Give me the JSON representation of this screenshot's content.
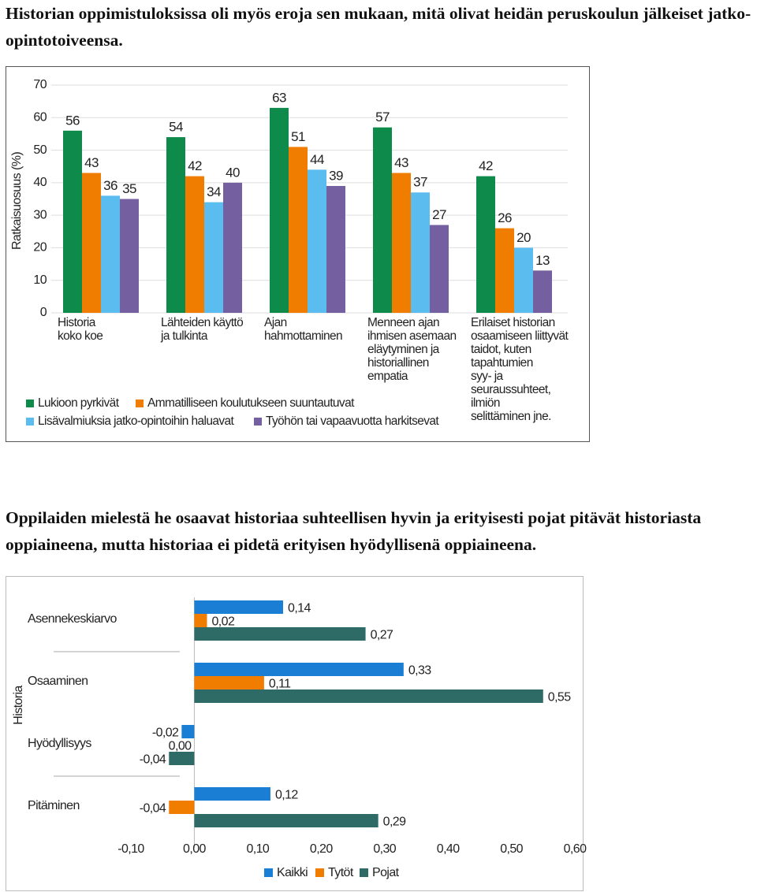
{
  "paragraphs": [
    "Historian oppimistuloksissa oli myös eroja sen mukaan, mitä olivat heidän peruskoulun jälkeiset jatko-opintotoiveensa.",
    "Oppilaiden mielestä he osaavat historiaa suhteellisen hyvin ja erityisesti pojat pitävät historiasta oppiaineena, mutta historiaa ei pidetä erityisen hyödyllisenä oppiaineena."
  ],
  "chart_data": [
    {
      "type": "bar",
      "y_label": "Ratkaisuosuus (%)",
      "categories": [
        "Historia\nkoko koe",
        "Lähteiden käyttö\nja tulkinta",
        "Ajan\nhahmottaminen",
        "Menneen ajan\nihmisen asemaan\neläytyminen ja\nhistoriallinen\nempatia",
        "Erilaiset historian\nosaamiseen liittyvät\ntaidot, kuten\ntapahtumien\nsyy- ja\nseuraussuhteet,\n ilmiön\nselittäminen jne."
      ],
      "series": [
        {
          "name": "Lukioon pyrkivät",
          "color": "#0e8a4a",
          "values": [
            56,
            54,
            63,
            57,
            42
          ]
        },
        {
          "name": "Ammatilliseen koulutukseen suuntautuvat",
          "color": "#f07c00",
          "values": [
            43,
            42,
            51,
            43,
            26
          ]
        },
        {
          "name": "Lisävalmiuksia jatko-opintoihin haluavat",
          "color": "#5bbcf0",
          "values": [
            36,
            34,
            44,
            37,
            20
          ]
        },
        {
          "name": "Työhön tai vapaavuotta harkitsevat",
          "color": "#745fa0",
          "values": [
            35,
            40,
            39,
            27,
            13
          ]
        }
      ],
      "ylim": [
        0,
        70
      ],
      "yticks": [
        0,
        10,
        20,
        30,
        40,
        50,
        60,
        70
      ],
      "grid": true
    },
    {
      "type": "barh",
      "y_label": "Historia",
      "categories": [
        "Asennekeskiarvo",
        "Osaaminen",
        "Hyödyllisyys",
        "Pitäminen"
      ],
      "series": [
        {
          "name": "Kaikki",
          "color": "#1a7fd4",
          "values": [
            0.14,
            0.33,
            -0.02,
            0.12
          ],
          "value_labels": [
            "0,14",
            "0,33",
            "-0,02",
            "0,12"
          ]
        },
        {
          "name": "Tytöt",
          "color": "#f07c00",
          "values": [
            0.02,
            0.11,
            0.0,
            -0.04
          ],
          "value_labels": [
            "0,02",
            "0,11",
            "0,00",
            "-0,04"
          ]
        },
        {
          "name": "Pojat",
          "color": "#2e6b66",
          "values": [
            0.27,
            0.55,
            -0.04,
            0.29
          ],
          "value_labels": [
            "0,27",
            "0,55",
            "-0,04",
            "0,29"
          ]
        }
      ],
      "xlim": [
        -0.1,
        0.6
      ],
      "xticks": [
        {
          "value": -0.1,
          "label": "-0,10"
        },
        {
          "value": 0,
          "label": "0,00"
        },
        {
          "value": 0.1,
          "label": "0,10"
        },
        {
          "value": 0.2,
          "label": "0,20"
        },
        {
          "value": 0.3,
          "label": "0,30"
        },
        {
          "value": 0.4,
          "label": "0,40"
        },
        {
          "value": 0.5,
          "label": "0,50"
        },
        {
          "value": 0.6,
          "label": "0,60"
        }
      ],
      "grid": false
    }
  ]
}
